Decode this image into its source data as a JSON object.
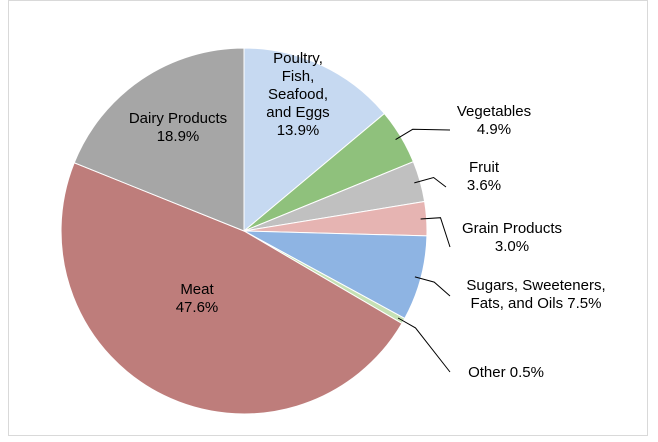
{
  "chart_data": {
    "type": "pie",
    "title": "",
    "start": "top, clockwise",
    "slices": [
      {
        "name": "Poultry, Fish, Seafood, and Eggs",
        "lines": [
          "Poultry,",
          "Fish,",
          "Seafood,",
          "and Eggs",
          "13.9%"
        ],
        "value": 13.9,
        "color": "#c6d9f1"
      },
      {
        "name": "Vegetables",
        "lines": [
          "Vegetables",
          "4.9%"
        ],
        "value": 4.9,
        "color": "#8fc17c"
      },
      {
        "name": "Fruit",
        "lines": [
          "Fruit",
          "3.6%"
        ],
        "value": 3.6,
        "color": "#c0c0c0"
      },
      {
        "name": "Grain Products",
        "lines": [
          "Grain Products",
          "3.0%"
        ],
        "value": 3.0,
        "color": "#e6b4b2"
      },
      {
        "name": "Sugars, Sweeteners, Fats, and Oils",
        "lines": [
          "Sugars, Sweeteners,",
          "Fats, and Oils 7.5%"
        ],
        "value": 7.5,
        "color": "#8eb4e3"
      },
      {
        "name": "Other",
        "lines": [
          "Other 0.5%"
        ],
        "value": 0.5,
        "color": "#c5e0b4"
      },
      {
        "name": "Meat",
        "lines": [
          "Meat",
          "47.6%"
        ],
        "value": 47.6,
        "color": "#be7d7b"
      },
      {
        "name": "Dairy Products",
        "lines": [
          "Dairy Products",
          "18.9%"
        ],
        "value": 18.9,
        "color": "#a6a6a6"
      }
    ]
  }
}
